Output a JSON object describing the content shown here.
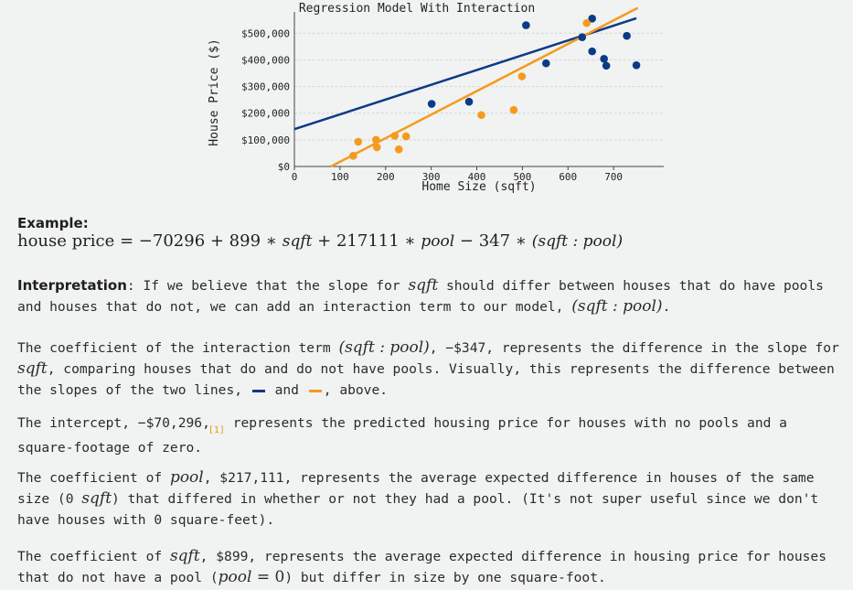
{
  "chart_data": {
    "type": "scatter",
    "title": "Regression Model With Interaction",
    "xlabel": "Home Size (sqft)",
    "ylabel": "House Price ($)",
    "xlim": [
      0,
      810
    ],
    "ylim": [
      0,
      580000
    ],
    "xticks": [
      0,
      100,
      200,
      300,
      400,
      500,
      600,
      700
    ],
    "xtick_labels": [
      "0",
      "100",
      "200",
      "300",
      "400",
      "500",
      "600",
      "700"
    ],
    "yticks": [
      0,
      100000,
      200000,
      300000,
      400000,
      500000
    ],
    "ytick_labels": [
      "$0",
      "$100,000",
      "$200,000",
      "$300,000",
      "$400,000",
      "$500,000"
    ],
    "grid": true,
    "series": [
      {
        "color": "#0b3a86",
        "points": [
          [
            301,
            235000
          ],
          [
            383,
            243000
          ],
          [
            508,
            530000
          ],
          [
            552,
            387000
          ],
          [
            631,
            485000
          ],
          [
            653,
            555000
          ],
          [
            653,
            432000
          ],
          [
            679,
            404000
          ],
          [
            684,
            378000
          ],
          [
            729,
            490000
          ],
          [
            750,
            380000
          ]
        ],
        "line": [
          [
            0,
            140000
          ],
          [
            750,
            556000
          ]
        ]
      },
      {
        "color": "#f59b1c",
        "points": [
          [
            129,
            40000
          ],
          [
            140,
            93000
          ],
          [
            179,
            100000
          ],
          [
            181,
            72000
          ],
          [
            220,
            115000
          ],
          [
            229,
            64000
          ],
          [
            245,
            113000
          ],
          [
            410,
            193000
          ],
          [
            481,
            212000
          ],
          [
            499,
            338000
          ],
          [
            641,
            538000
          ]
        ],
        "line": [
          [
            80,
            0
          ],
          [
            753,
            595000
          ]
        ]
      }
    ]
  },
  "example": {
    "heading": "Example:",
    "formula_lhs": "house price",
    "intercept": "−70296",
    "coef_sqft": "899",
    "var_sqft": "sqft",
    "coef_pool": "217111",
    "var_pool": "pool",
    "coef_inter": "347",
    "inter_term": "(sqft : pool)"
  },
  "interpretation": {
    "heading": "Interpretation",
    "text1": ": If we believe that the slope for ",
    "text2": " should differ between houses that do have pools and houses that do not, we can add an interaction term to our model, ",
    "text3": "."
  },
  "para_interaction": {
    "t1": "The coefficient of the interaction term ",
    "t2": ", −$347, represents the difference in the slope for ",
    "t3": ", comparing houses that do and do not have pools. Visually, this represents the difference between the slopes of the two lines, ",
    "t4": " and ",
    "t5": ", above.",
    "blue": "#0b3a86",
    "orange": "#f59b1c"
  },
  "para_intercept": {
    "t1": "The intercept, −$70,296,",
    "fnref": "[1]",
    "t2": " represents the predicted housing price for houses with no pools and a square-footage of zero."
  },
  "para_pool": {
    "t1": "The coefficient of ",
    "t2": ", $217,111, represents the average expected difference in houses of the same size (0 ",
    "t3": ") that differed in whether or not they had a pool. (It's not super useful since we don't have houses with 0 square-feet)."
  },
  "para_sqft": {
    "t1": "The coefficient of ",
    "t2": ", $899, represents the average expected difference in housing price for houses that do not have a pool (",
    "t3": "pool",
    "t4": " = 0",
    "t5": ") but differ in size by one square-foot."
  }
}
